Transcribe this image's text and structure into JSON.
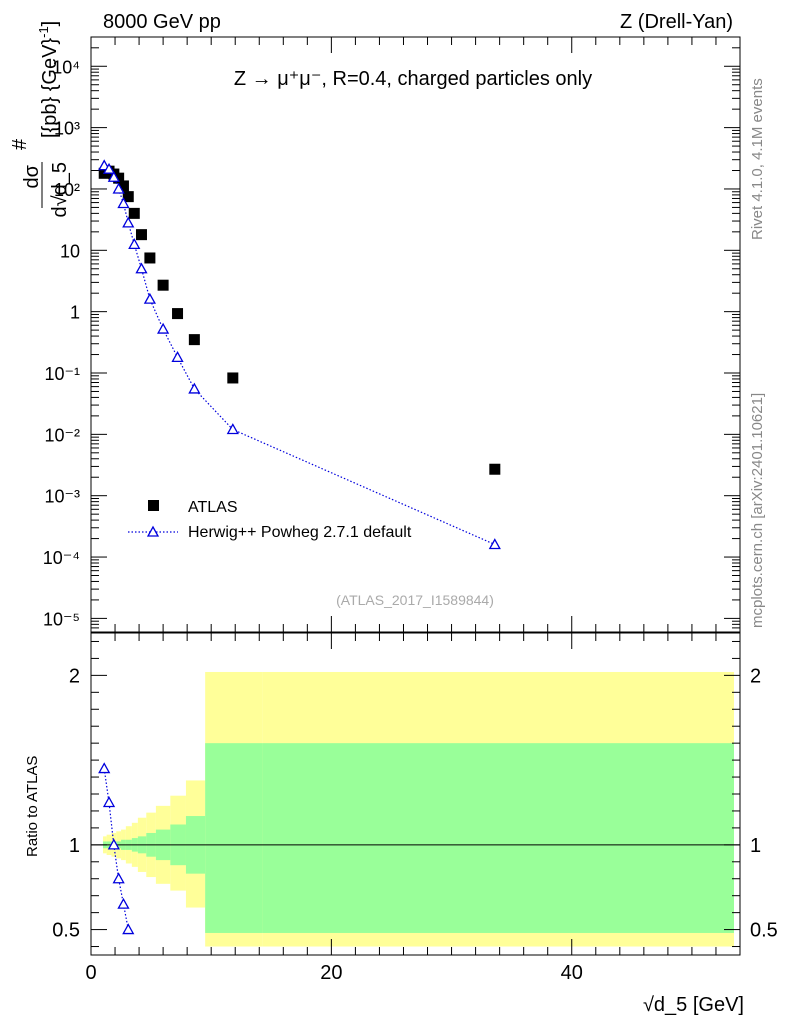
{
  "header": {
    "left": "8000 GeV pp",
    "right": "Z (Drell-Yan)"
  },
  "side": {
    "version": "Rivet 4.1.0,  4.1M events",
    "source": "mcplots.cern.ch [arXiv:2401.10621]"
  },
  "chart_data": [
    {
      "type": "scatter",
      "panel": "main",
      "title": "Z → μ⁺μ⁻, R=0.4, charged particles only",
      "ylabel": "# dσ / d√d_5 [{pb} {GeV}⁻¹]",
      "xlabel": "",
      "yscale": "log",
      "ylim": [
        6e-06,
        30000.0
      ],
      "xlim": [
        0,
        54
      ],
      "y_ticks": [
        1e-05,
        0.0001,
        0.001,
        0.01,
        0.1,
        1,
        10,
        100.0,
        1000.0,
        10000.0
      ],
      "y_tick_labels": [
        "10⁻⁵",
        "10⁻⁴",
        "10⁻³",
        "10⁻²",
        "10⁻¹",
        "1",
        "10",
        "10²",
        "10³",
        "10⁴"
      ],
      "watermark": "(ATLAS_2017_I1589844)",
      "legend_position": "lower-left",
      "series": [
        {
          "name": "ATLAS",
          "marker": "square",
          "color": "#000000",
          "x": [
            1.1,
            1.5,
            1.9,
            2.3,
            2.7,
            3.1,
            3.6,
            4.2,
            4.9,
            6.0,
            7.2,
            8.6,
            11.8,
            33.6
          ],
          "values": [
            180,
            195,
            175,
            150,
            112,
            75,
            40,
            18,
            7.5,
            2.7,
            0.93,
            0.35,
            0.083,
            0.0027
          ]
        },
        {
          "name": "Herwig++ Powheg 2.7.1 default",
          "marker": "triangle-open",
          "line": "dotted",
          "color": "#0000dd",
          "x": [
            1.1,
            1.5,
            1.9,
            2.3,
            2.7,
            3.1,
            3.6,
            4.2,
            4.9,
            6.0,
            7.2,
            8.6,
            11.8,
            33.6
          ],
          "values": [
            240,
            210,
            155,
            100,
            58,
            28,
            12.5,
            5,
            1.6,
            0.52,
            0.18,
            0.055,
            0.012,
            0.00016
          ]
        }
      ]
    },
    {
      "type": "line",
      "panel": "ratio",
      "ylabel": "Ratio to ATLAS",
      "xlabel": "√d_5 [GeV]",
      "ylim": [
        0.35,
        2.25
      ],
      "xlim": [
        0,
        54
      ],
      "x_ticks": [
        0,
        20,
        40
      ],
      "x_tick_labels": [
        "0",
        "20",
        "40"
      ],
      "y_ticks": [
        0.5,
        1,
        2
      ],
      "y_tick_labels": [
        "0.5",
        "1",
        "2"
      ],
      "band_colors": {
        "stat": "#99ff99",
        "total": "#ffff99"
      },
      "bands": {
        "edges": [
          1.0,
          1.3,
          1.7,
          2.1,
          2.5,
          2.9,
          3.4,
          3.9,
          4.6,
          5.4,
          6.6,
          7.9,
          9.5,
          14.3,
          53.5
        ],
        "stat_hi": [
          1.02,
          1.02,
          1.02,
          1.02,
          1.03,
          1.03,
          1.04,
          1.05,
          1.07,
          1.09,
          1.12,
          1.17,
          1.6,
          1.6
        ],
        "stat_lo": [
          0.98,
          0.98,
          0.98,
          0.98,
          0.97,
          0.97,
          0.96,
          0.95,
          0.93,
          0.91,
          0.88,
          0.83,
          0.48,
          0.48
        ],
        "total_hi": [
          1.05,
          1.06,
          1.07,
          1.08,
          1.09,
          1.11,
          1.13,
          1.16,
          1.19,
          1.23,
          1.29,
          1.38,
          2.02,
          2.02
        ],
        "total_lo": [
          0.95,
          0.94,
          0.93,
          0.92,
          0.91,
          0.89,
          0.87,
          0.84,
          0.81,
          0.77,
          0.73,
          0.63,
          0.4,
          0.4
        ]
      },
      "series": [
        {
          "name": "Herwig++ Powheg 2.7.1 default",
          "marker": "triangle-open",
          "line": "dotted",
          "color": "#0000dd",
          "x": [
            1.1,
            1.5,
            1.9,
            2.3,
            2.7,
            3.1
          ],
          "values": [
            1.45,
            1.25,
            1.0,
            0.8,
            0.65,
            0.5
          ]
        }
      ]
    }
  ]
}
